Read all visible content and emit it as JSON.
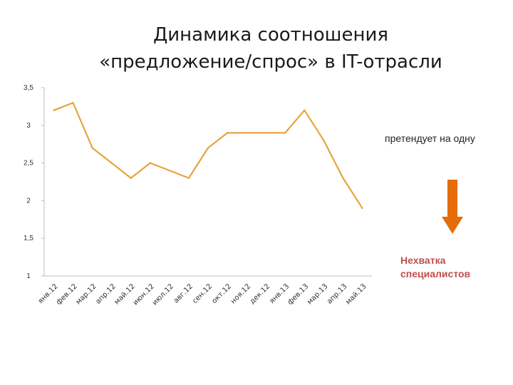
{
  "title": {
    "line1": "Динамика соотношения",
    "line2": "«предложение/спрос» в IT-отрасли"
  },
  "annotation": {
    "text": "претендует на одну",
    "shortage_line1": "Нехватка",
    "shortage_line2": "специалистов"
  },
  "colors": {
    "line": "#e8a33d",
    "arrow": "#e46c0a",
    "shortage_text": "#c0504d"
  },
  "icons": {
    "arrow": "arrow-down-icon"
  },
  "chart_data": {
    "type": "line",
    "categories": [
      "янв.12",
      "фев.12",
      "мар.12",
      "апр.12",
      "май.12",
      "июн.12",
      "июл.12",
      "авг.12",
      "сен.12",
      "окт.12",
      "ноя.12",
      "дек.12",
      "янв.13",
      "фев.13",
      "мар.13",
      "апр.13",
      "май.13"
    ],
    "series": [
      {
        "values": [
          3.2,
          3.3,
          2.7,
          2.5,
          2.3,
          2.5,
          2.4,
          2.3,
          2.7,
          2.9,
          2.9,
          2.9,
          2.9,
          3.2,
          2.8,
          2.3,
          1.9
        ]
      }
    ],
    "yticks": [
      "1",
      "1,5",
      "2",
      "2,5",
      "3",
      "3,5"
    ],
    "ylim": [
      1,
      3.5
    ],
    "grid": false,
    "legend": "none"
  }
}
